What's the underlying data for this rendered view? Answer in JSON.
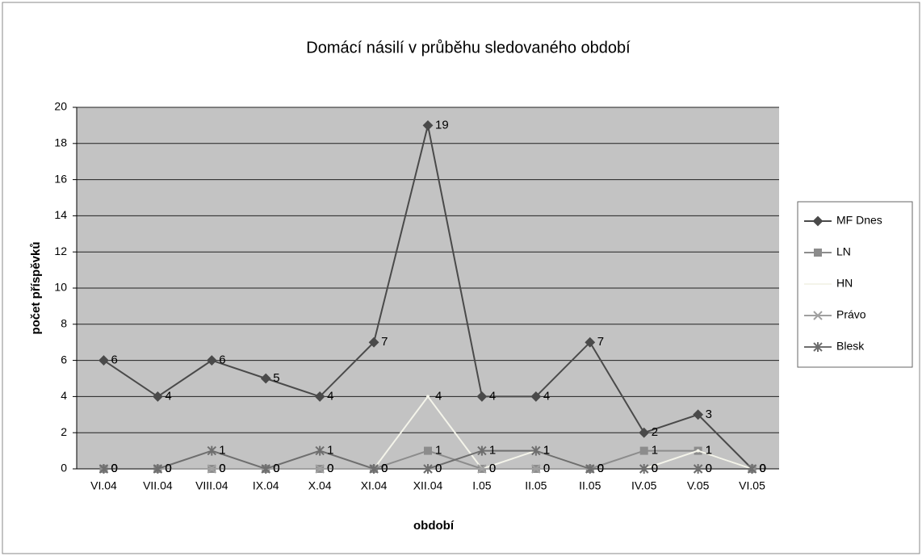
{
  "chart_data": {
    "type": "line",
    "title": "Domácí násilí v průběhu sledovaného období",
    "x_label": "období",
    "y_label": "počet příspěvků",
    "categories": [
      "VI.04",
      "VII.04",
      "VIII.04",
      "IX.04",
      "X.04",
      "XI.04",
      "XII.04",
      "I.05",
      "II.05",
      "II.05",
      "IV.05",
      "V.05",
      "VI.05"
    ],
    "series": [
      {
        "name": "MF Dnes",
        "color": "#4a4a4a",
        "marker": "diamond",
        "values": [
          6,
          4,
          6,
          5,
          4,
          7,
          19,
          4,
          4,
          7,
          2,
          3,
          0
        ]
      },
      {
        "name": "LN",
        "color": "#8c8c8c",
        "marker": "square",
        "values": [
          0,
          0,
          0,
          0,
          0,
          0,
          1,
          0,
          0,
          0,
          1,
          1,
          0
        ]
      },
      {
        "name": "HN",
        "color": "#f4f4ea",
        "marker": "none",
        "values": [
          0,
          0,
          0,
          0,
          0,
          0,
          4,
          0,
          1,
          0,
          0,
          1,
          0
        ]
      },
      {
        "name": "Právo",
        "color": "#a0a0a0",
        "marker": "x",
        "values": [
          0,
          0,
          0,
          0,
          0,
          0,
          0,
          0,
          0,
          0,
          0,
          0,
          0
        ]
      },
      {
        "name": "Blesk",
        "color": "#6e6e6e",
        "marker": "star",
        "values": [
          0,
          0,
          1,
          0,
          1,
          0,
          0,
          1,
          1,
          0,
          0,
          0,
          0
        ]
      }
    ],
    "ylim": [
      0,
      20
    ],
    "yticks": [
      0,
      2,
      4,
      6,
      8,
      10,
      12,
      14,
      16,
      18,
      20
    ],
    "grid": true,
    "legend": "right",
    "plot_background": "#c3c3c3"
  }
}
